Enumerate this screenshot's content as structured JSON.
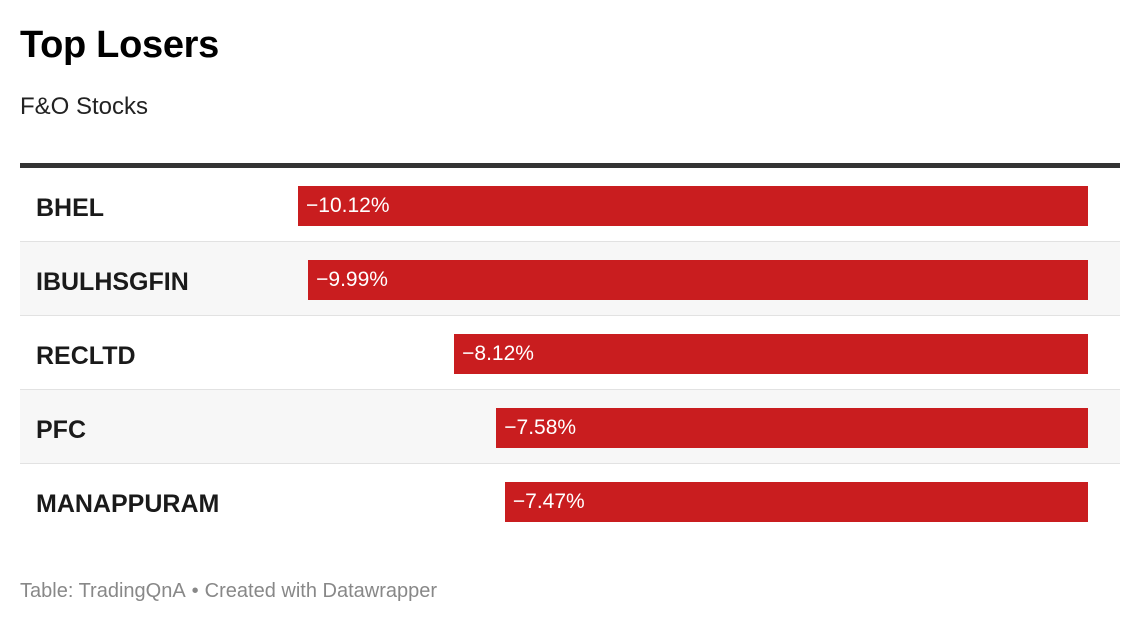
{
  "title": "Top Losers",
  "subtitle": "F&O Stocks",
  "footer": {
    "source": "Table: TradingQnA",
    "separator": "•",
    "credit": "Created with Datawrapper"
  },
  "colors": {
    "bar": "#c91d1f",
    "header_rule": "#333333",
    "alt_row": "#f7f7f7"
  },
  "chart_data": {
    "type": "bar",
    "title": "Top Losers",
    "subtitle": "F&O Stocks",
    "categories": [
      "BHEL",
      "IBULHSGFIN",
      "RECLTD",
      "PFC",
      "MANAPPURAM"
    ],
    "values": [
      -10.12,
      -9.99,
      -8.12,
      -7.58,
      -7.47
    ],
    "labels": [
      "−10.12%",
      "−9.99%",
      "−8.12%",
      "−7.58%",
      "−7.47%"
    ],
    "orientation": "horizontal",
    "bar_direction": "grows-left-from-zero-at-right",
    "xlim": [
      -10.12,
      0
    ],
    "grid": false,
    "legend": "none"
  }
}
